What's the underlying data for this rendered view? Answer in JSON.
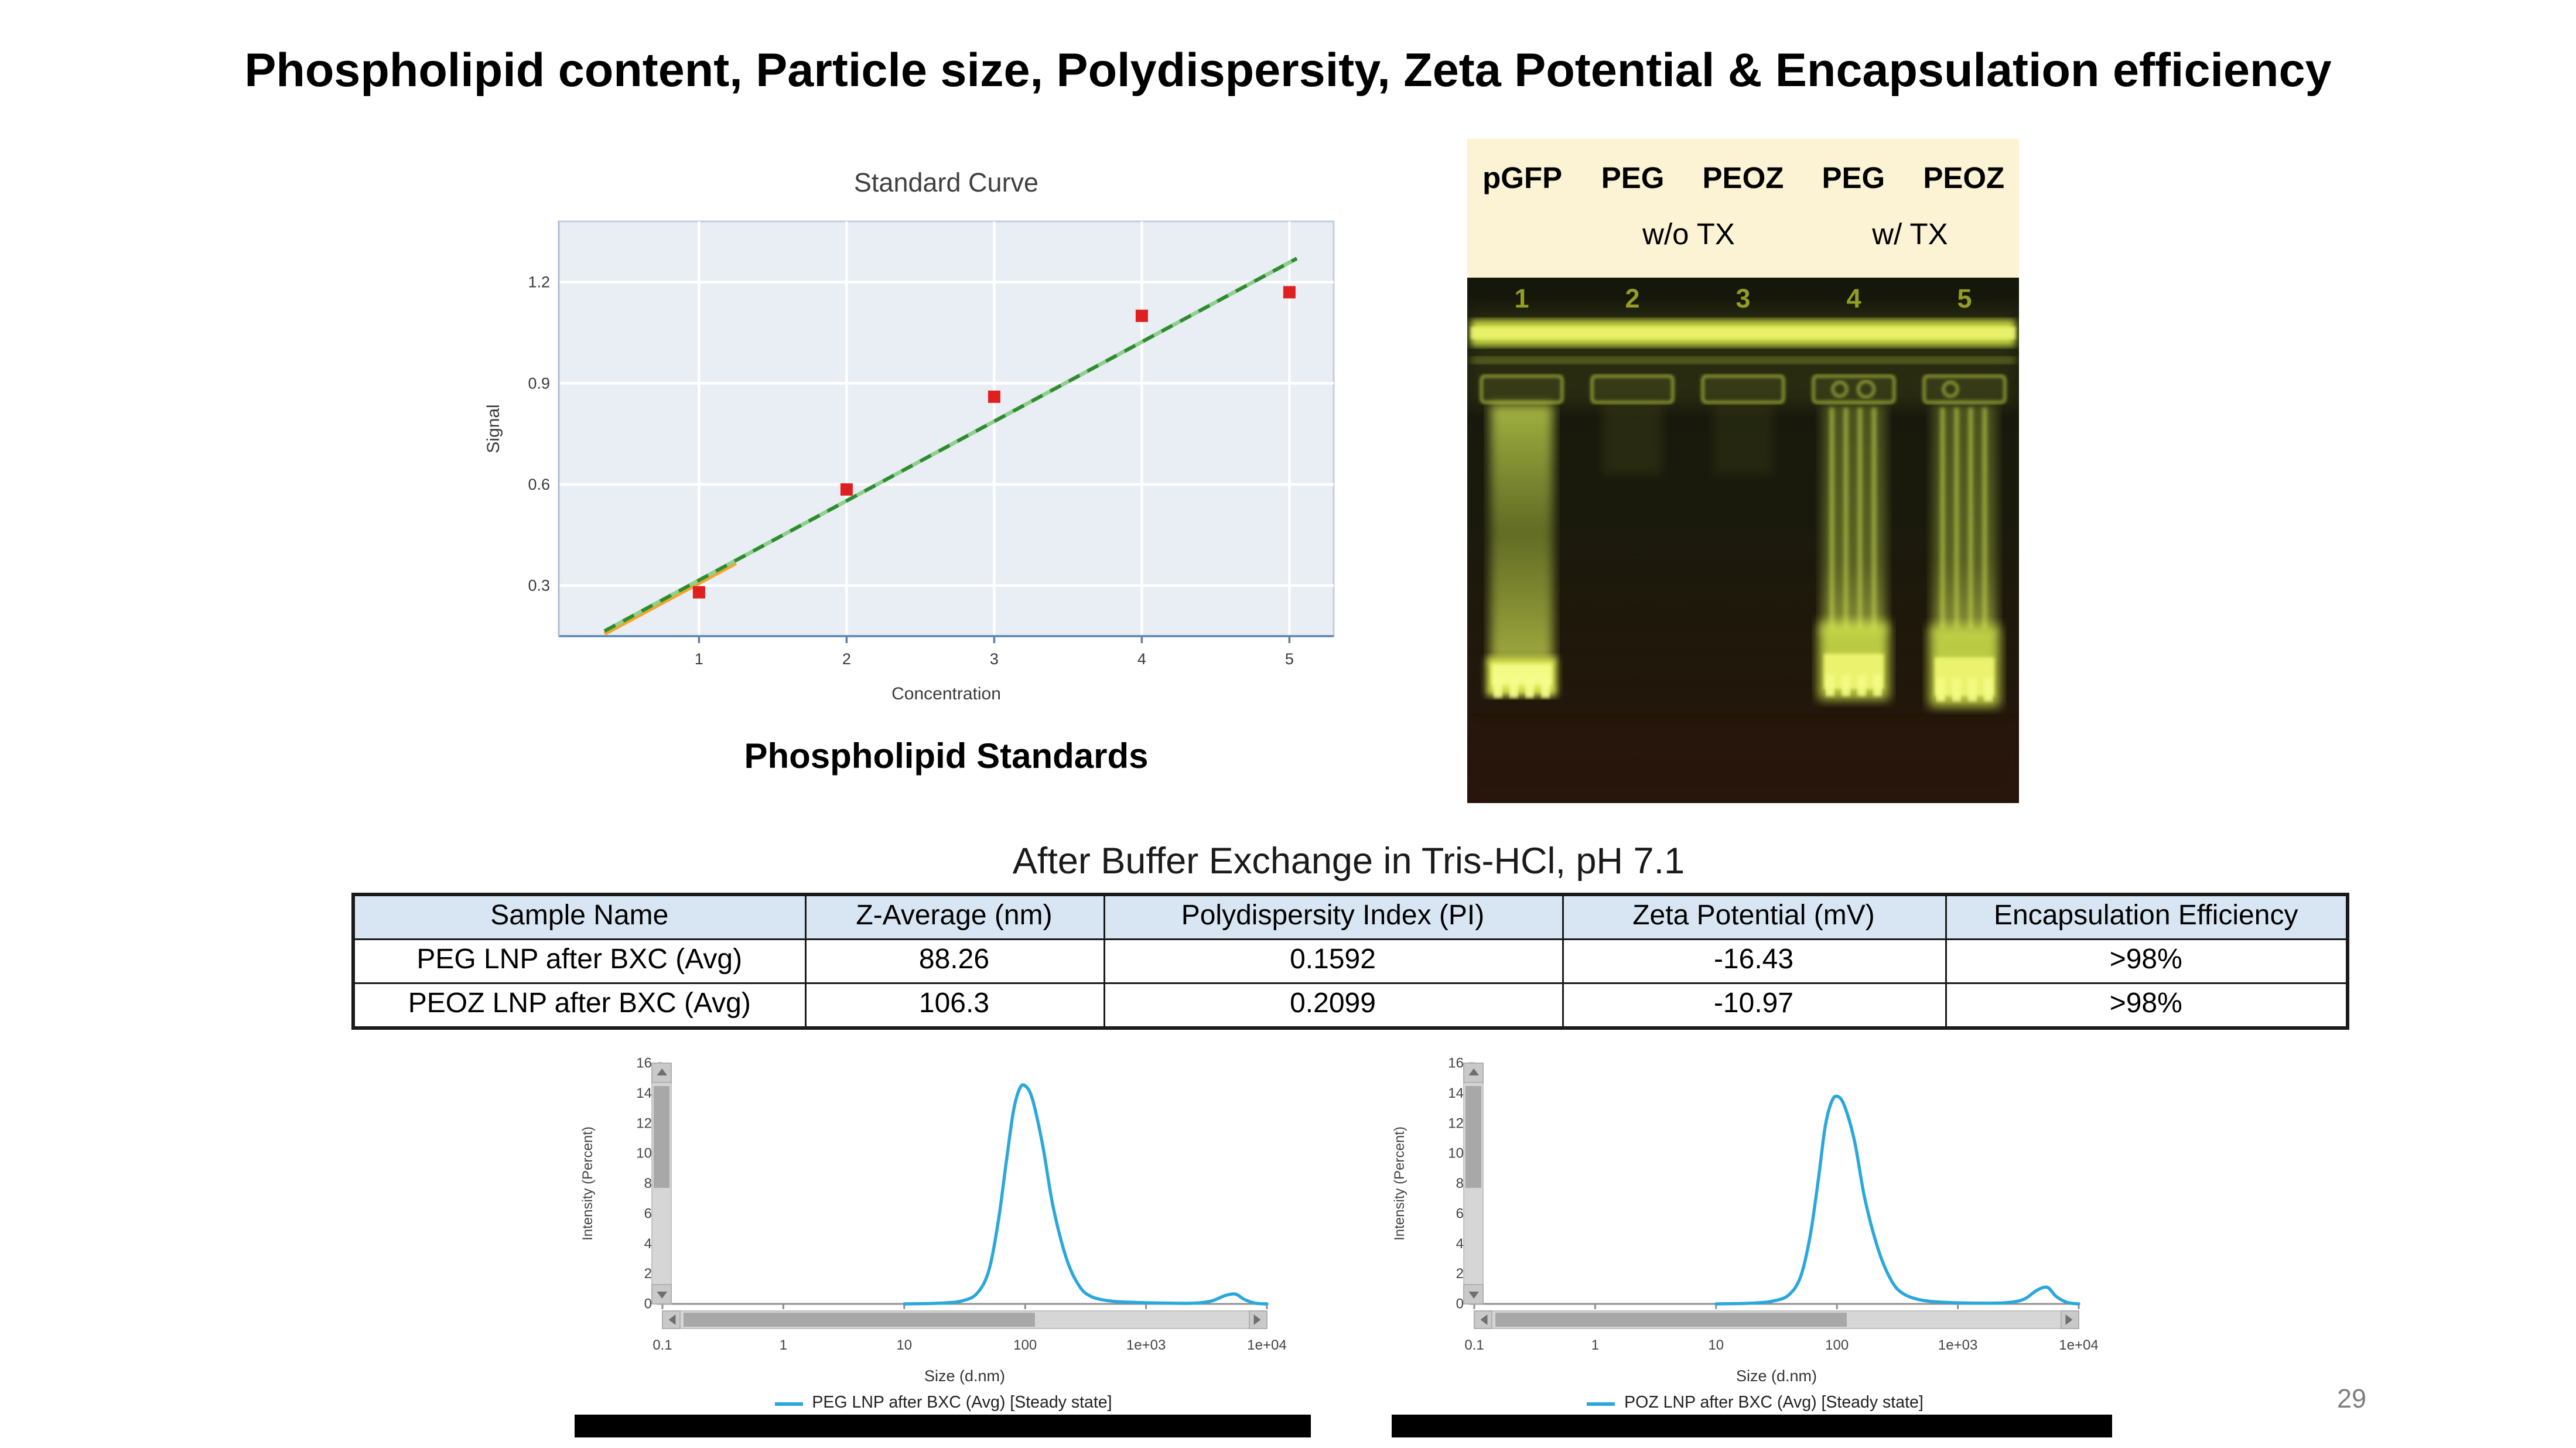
{
  "slide": {
    "title": "Phospholipid content, Particle size, Polydispersity, Zeta Potential & Encapsulation efficiency",
    "page_number": "29"
  },
  "standard_curve_caption": "Phospholipid Standards",
  "gel": {
    "lane_labels": [
      "pGFP",
      "PEG",
      "PEOZ",
      "PEG",
      "PEOZ"
    ],
    "condition_labels": [
      "w/o TX",
      "w/ TX"
    ],
    "lane_numbers": [
      "1",
      "2",
      "3",
      "4",
      "5"
    ]
  },
  "table": {
    "heading": "After Buffer Exchange in Tris-HCl, pH 7.1",
    "columns": [
      "Sample Name",
      "Z-Average (nm)",
      "Polydispersity Index (PI)",
      "Zeta Potential (mV)",
      "Encapsulation Efficiency"
    ],
    "rows": [
      [
        "PEG LNP after BXC (Avg)",
        "88.26",
        "0.1592",
        "-16.43",
        ">98%"
      ],
      [
        "PEOZ LNP after BXC (Avg)",
        "106.3",
        "0.2099",
        "-10.97",
        ">98%"
      ]
    ]
  },
  "chart_data": [
    {
      "id": "standard_curve",
      "type": "scatter",
      "title": "Standard Curve",
      "xlabel": "Concentration",
      "ylabel": "Signal",
      "xlim": [
        0.05,
        5.3
      ],
      "ylim": [
        0.15,
        1.38
      ],
      "xticks": [
        1,
        2,
        3,
        4,
        5
      ],
      "yticks": [
        0.3,
        0.6,
        0.9,
        1.2
      ],
      "points": [
        [
          1,
          0.28
        ],
        [
          2,
          0.585
        ],
        [
          3,
          0.86
        ],
        [
          4,
          1.1
        ],
        [
          5,
          1.17
        ]
      ],
      "fit_line": {
        "x1": 0.36,
        "y1": 0.165,
        "x2": 5.05,
        "y2": 1.27
      },
      "fit_line_color": "#2e8b2e",
      "fit_segment_end_x": 1.25,
      "fit_segment_color": "#f5a425",
      "point_color": "#e02020",
      "grid": true,
      "panel_color": "#e9edf4"
    },
    {
      "id": "dls_peg",
      "type": "line",
      "xlabel": "Size (d.nm)",
      "ylabel": "Intensity (Percent)",
      "xscale": "log",
      "xlim": [
        0.1,
        10000
      ],
      "ylim": [
        0,
        16
      ],
      "yticks": [
        0,
        2,
        4,
        6,
        8,
        10,
        12,
        14,
        16
      ],
      "xticks": [
        0.1,
        1,
        10,
        100,
        1000,
        10000
      ],
      "xtick_labels": [
        "0.1",
        "1",
        "10",
        "100",
        "1e+03",
        "1e+04"
      ],
      "legend": "PEG LNP after BXC (Avg) [Steady state]",
      "line_color": "#2aa7dc",
      "series": [
        [
          10,
          0
        ],
        [
          20,
          0.05
        ],
        [
          30,
          0.2
        ],
        [
          40,
          0.7
        ],
        [
          50,
          2.2
        ],
        [
          60,
          5.5
        ],
        [
          70,
          9.5
        ],
        [
          80,
          12.8
        ],
        [
          90,
          14.3
        ],
        [
          100,
          14.5
        ],
        [
          115,
          13.6
        ],
        [
          140,
          10.5
        ],
        [
          170,
          6.5
        ],
        [
          220,
          3.0
        ],
        [
          280,
          1.2
        ],
        [
          350,
          0.5
        ],
        [
          500,
          0.2
        ],
        [
          800,
          0.1
        ],
        [
          1500,
          0.05
        ],
        [
          2500,
          0.05
        ],
        [
          3500,
          0.2
        ],
        [
          4500,
          0.55
        ],
        [
          5500,
          0.65
        ],
        [
          6500,
          0.3
        ],
        [
          8000,
          0.05
        ],
        [
          10000,
          0
        ]
      ]
    },
    {
      "id": "dls_peoz",
      "type": "line",
      "xlabel": "Size (d.nm)",
      "ylabel": "Intensity (Percent)",
      "xscale": "log",
      "xlim": [
        0.1,
        10000
      ],
      "ylim": [
        0,
        16
      ],
      "yticks": [
        0,
        2,
        4,
        6,
        8,
        10,
        12,
        14,
        16
      ],
      "xticks": [
        0.1,
        1,
        10,
        100,
        1000,
        10000
      ],
      "xtick_labels": [
        "0.1",
        "1",
        "10",
        "100",
        "1e+03",
        "1e+04"
      ],
      "legend": "POZ LNP after BXC (Avg) [Steady state]",
      "line_color": "#2aa7dc",
      "series": [
        [
          10,
          0
        ],
        [
          20,
          0.05
        ],
        [
          30,
          0.2
        ],
        [
          40,
          0.6
        ],
        [
          50,
          1.8
        ],
        [
          60,
          4.5
        ],
        [
          70,
          8.2
        ],
        [
          80,
          11.8
        ],
        [
          90,
          13.4
        ],
        [
          100,
          13.8
        ],
        [
          115,
          13.2
        ],
        [
          140,
          10.8
        ],
        [
          170,
          7.0
        ],
        [
          220,
          3.6
        ],
        [
          280,
          1.6
        ],
        [
          350,
          0.7
        ],
        [
          500,
          0.25
        ],
        [
          800,
          0.1
        ],
        [
          1500,
          0.05
        ],
        [
          2500,
          0.08
        ],
        [
          3500,
          0.3
        ],
        [
          4500,
          0.9
        ],
        [
          5500,
          1.1
        ],
        [
          6500,
          0.5
        ],
        [
          8000,
          0.1
        ],
        [
          10000,
          0
        ]
      ]
    }
  ]
}
